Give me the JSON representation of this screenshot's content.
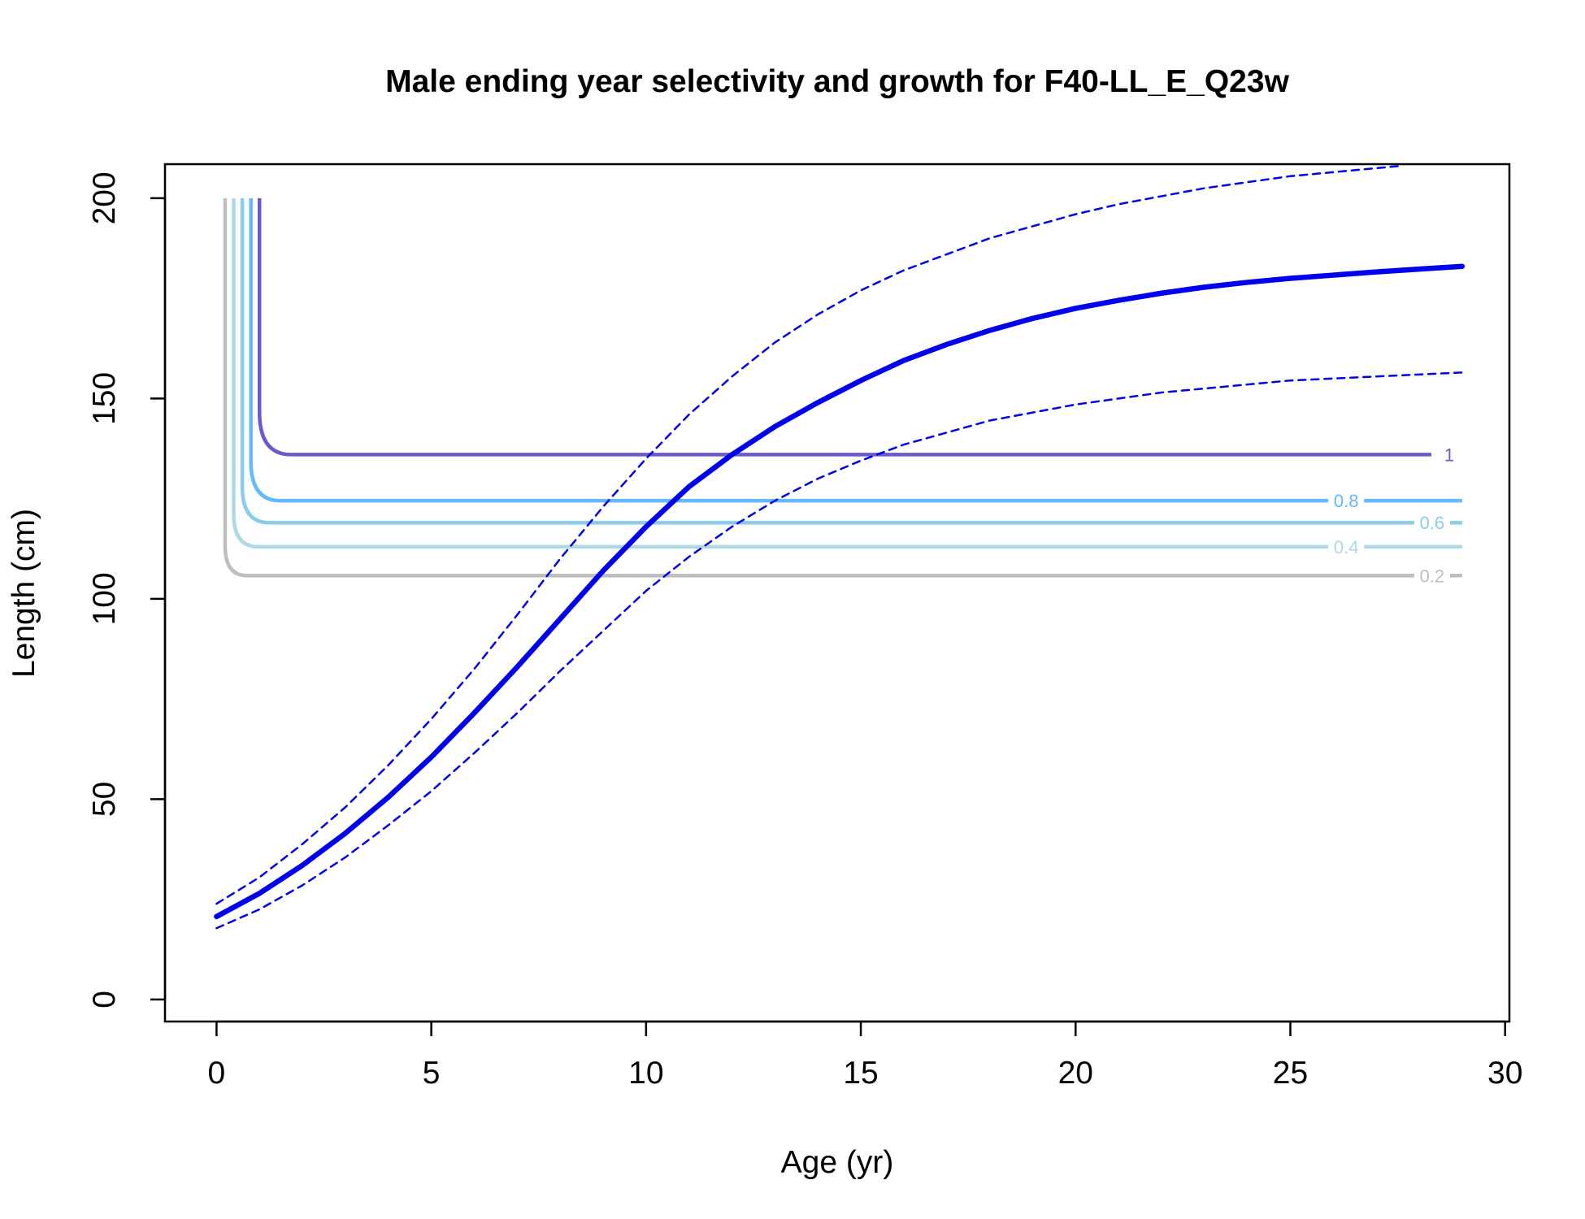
{
  "chart_data": {
    "type": "line",
    "title": "Male ending year selectivity and growth for F40-LL_E_Q23w",
    "xlabel": "Age (yr)",
    "ylabel": "Length (cm)",
    "xlim": [
      -1.2,
      30.1
    ],
    "ylim": [
      -5.5,
      208.5
    ],
    "x_ticks": [
      0,
      5,
      10,
      15,
      20,
      25,
      30
    ],
    "y_ticks": [
      0,
      50,
      100,
      150,
      200
    ],
    "grid": false,
    "legend": "none",
    "growth": {
      "color": "#0000ee",
      "mean": {
        "x": [
          0,
          1,
          2,
          3,
          4,
          5,
          6,
          7,
          8,
          9,
          10,
          11,
          12,
          13,
          14,
          15,
          16,
          17,
          18,
          19,
          20,
          21,
          22,
          23,
          24,
          25,
          26,
          27,
          28,
          29
        ],
        "y": [
          20.7,
          26.5,
          33.5,
          41.5,
          50.5,
          60.5,
          71.5,
          83.0,
          95.0,
          107.0,
          118.0,
          128.0,
          136.0,
          143.0,
          149.0,
          154.5,
          159.5,
          163.5,
          167.0,
          170.0,
          172.5,
          174.5,
          176.3,
          177.8,
          179.0,
          180.0,
          180.8,
          181.6,
          182.3,
          183.0
        ]
      },
      "upper": {
        "x": [
          0,
          1,
          2,
          3,
          4,
          5,
          6,
          7,
          8,
          9,
          10,
          11,
          12,
          13,
          14,
          15,
          16,
          17,
          18,
          19,
          20,
          21,
          22,
          23,
          24,
          25,
          26,
          27,
          27.5
        ],
        "y": [
          23.9,
          30.5,
          38.8,
          48.0,
          58.5,
          70.0,
          82.5,
          96.0,
          110.0,
          123.0,
          135.0,
          146.0,
          155.5,
          164.0,
          171.0,
          177.0,
          182.0,
          186.0,
          190.0,
          193.0,
          196.0,
          198.5,
          200.5,
          202.5,
          204.0,
          205.5,
          206.5,
          207.5,
          208.0
        ]
      },
      "lower": {
        "x": [
          0,
          1,
          2,
          3,
          4,
          5,
          6,
          7,
          8,
          9,
          10,
          11,
          12,
          13,
          14,
          15,
          16,
          17,
          18,
          19,
          20,
          21,
          22,
          23,
          24,
          25,
          26,
          27,
          28,
          29
        ],
        "y": [
          17.8,
          22.5,
          28.5,
          35.5,
          43.5,
          52.0,
          61.5,
          71.5,
          82.0,
          92.0,
          102.0,
          110.5,
          118.0,
          124.5,
          130.0,
          134.5,
          138.5,
          141.5,
          144.5,
          146.5,
          148.5,
          150.0,
          151.5,
          152.5,
          153.5,
          154.5,
          155.0,
          155.5,
          156.0,
          156.5
        ]
      }
    },
    "selectivity_contours": [
      {
        "label": "0.2",
        "color": "#bebebe",
        "x_left": 0.2,
        "level": 105.8,
        "label_x": 28.3
      },
      {
        "label": "0.4",
        "color": "#add8e6",
        "x_left": 0.4,
        "level": 113.0,
        "label_x": 26.3
      },
      {
        "label": "0.6",
        "color": "#87ceeb",
        "x_left": 0.6,
        "level": 119.0,
        "label_x": 28.3
      },
      {
        "label": "0.8",
        "color": "#63b8ff",
        "x_left": 0.8,
        "level": 124.5,
        "label_x": 26.3
      },
      {
        "label": "1",
        "color": "#6a5acd",
        "x_left": 1.0,
        "level": 136.0,
        "label_x": 28.7
      }
    ],
    "contour_top": 200,
    "contour_right": 29
  }
}
